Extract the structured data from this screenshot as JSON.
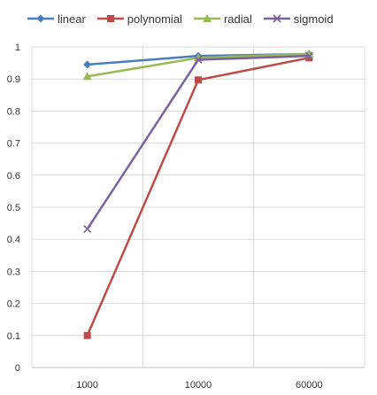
{
  "chart_data": {
    "type": "line",
    "title": "",
    "xlabel": "",
    "ylabel": "",
    "categories": [
      "1000",
      "10000",
      "60000"
    ],
    "ylim": [
      0,
      1
    ],
    "yticks": [
      0,
      0.1,
      0.2,
      0.3,
      0.4,
      0.5,
      0.6,
      0.7,
      0.8,
      0.9,
      1
    ],
    "ytick_labels": [
      "0",
      "0.1",
      "0.2",
      "0.3",
      "0.4",
      "0.5",
      "0.6",
      "0.7",
      "0.8",
      "0.9",
      "1"
    ],
    "grid": true,
    "legend_position": "top",
    "series": [
      {
        "name": "linear",
        "values": [
          0.945,
          0.972,
          0.978
        ],
        "color": "#4a7ebb",
        "marker": "diamond"
      },
      {
        "name": "polynomial",
        "values": [
          0.1,
          0.897,
          0.966
        ],
        "color": "#be4b48",
        "marker": "square"
      },
      {
        "name": "radial",
        "values": [
          0.908,
          0.966,
          0.978
        ],
        "color": "#98b954",
        "marker": "triangle"
      },
      {
        "name": "sigmoid",
        "values": [
          0.432,
          0.96,
          0.972
        ],
        "color": "#7d60a0",
        "marker": "x"
      }
    ]
  }
}
